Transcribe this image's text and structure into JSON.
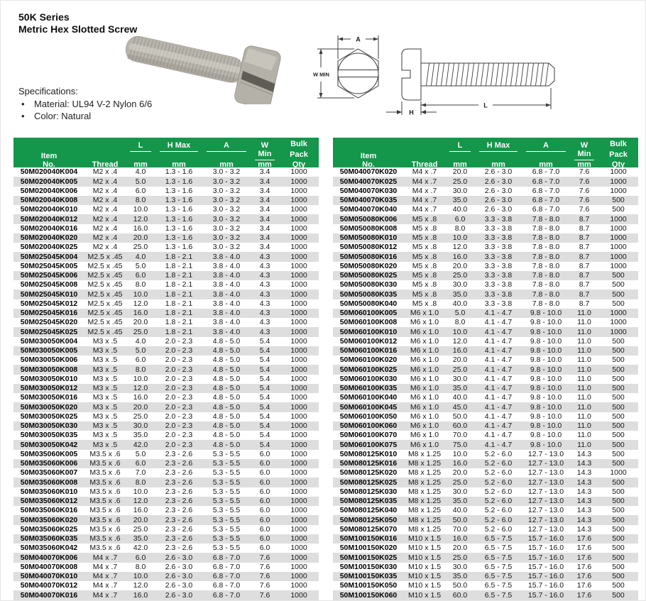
{
  "title": {
    "line1": "50K Series",
    "line2": "Metric Hex Slotted Screw"
  },
  "specifications": {
    "heading": "Specifications:",
    "bullet": "•",
    "items": [
      "Material: UL94 V-2 Nylon 6/6",
      "Color: Natural"
    ]
  },
  "drawing_labels": {
    "a": "A",
    "w_min": "W MIN",
    "l": "L",
    "h": "H"
  },
  "colors": {
    "header_green": "#14964B",
    "row_stripe": "#DEDEDE",
    "table_border": "#232323",
    "screw_body": "#B8B5AD"
  },
  "table_header": {
    "item_line1": "Item",
    "item_line2": "No.",
    "thread": "Thread",
    "l": "L",
    "h_max": "H Max",
    "a": "A",
    "w_min": "W Min",
    "unit": "mm",
    "bulk_line1": "Bulk",
    "bulk_line2": "Pack",
    "bulk_line3": "Qty"
  },
  "tables": {
    "left": {
      "rows": [
        [
          "50M020040K004",
          "M2 x .4",
          "4.0",
          "1.3 - 1.6",
          "3.0 - 3.2",
          "3.4",
          "1000"
        ],
        [
          "50M020040K005",
          "M2 x .4",
          "5.0",
          "1.3 - 1.6",
          "3.0 - 3.2",
          "3.4",
          "1000"
        ],
        [
          "50M020040K006",
          "M2 x .4",
          "6.0",
          "1.3 - 1.6",
          "3.0 - 3.2",
          "3.4",
          "1000"
        ],
        [
          "50M020040K008",
          "M2 x .4",
          "8.0",
          "1.3 - 1.6",
          "3.0 - 3.2",
          "3.4",
          "1000"
        ],
        [
          "50M020040K010",
          "M2 x .4",
          "10.0",
          "1.3 - 1.6",
          "3.0 - 3.2",
          "3.4",
          "1000"
        ],
        [
          "50M020040K012",
          "M2 x .4",
          "12.0",
          "1.3 - 1.6",
          "3.0 - 3.2",
          "3.4",
          "1000"
        ],
        [
          "50M020040K016",
          "M2 x .4",
          "16.0",
          "1.3 - 1.6",
          "3.0 - 3.2",
          "3.4",
          "1000"
        ],
        [
          "50M020040K020",
          "M2 x .4",
          "20.0",
          "1.3 - 1.6",
          "3.0 - 3.2",
          "3.4",
          "1000"
        ],
        [
          "50M020040K025",
          "M2 x .4",
          "25.0",
          "1.3 - 1.6",
          "3.0 - 3.2",
          "3.4",
          "1000"
        ],
        [
          "50M025045K004",
          "M2.5 x .45",
          "4.0",
          "1.8 - 2.1",
          "3.8 - 4.0",
          "4.3",
          "1000"
        ],
        [
          "50M025045K005",
          "M2.5 x .45",
          "5.0",
          "1.8 - 2.1",
          "3.8 - 4.0",
          "4.3",
          "1000"
        ],
        [
          "50M025045K006",
          "M2.5 x .45",
          "6.0",
          "1.8 - 2.1",
          "3.8 - 4.0",
          "4.3",
          "1000"
        ],
        [
          "50M025045K008",
          "M2.5 x .45",
          "8.0",
          "1.8 - 2.1",
          "3.8 - 4.0",
          "4.3",
          "1000"
        ],
        [
          "50M025045K010",
          "M2.5 x .45",
          "10.0",
          "1.8 - 2.1",
          "3.8 - 4.0",
          "4.3",
          "1000"
        ],
        [
          "50M025045K012",
          "M2.5 x .45",
          "12.0",
          "1.8 - 2.1",
          "3.8 - 4.0",
          "4.3",
          "1000"
        ],
        [
          "50M025045K016",
          "M2.5 x .45",
          "16.0",
          "1.8 - 2.1",
          "3.8 - 4.0",
          "4.3",
          "1000"
        ],
        [
          "50M025045K020",
          "M2.5 x .45",
          "20.0",
          "1.8 - 2.1",
          "3.8 - 4.0",
          "4.3",
          "1000"
        ],
        [
          "50M025045K025",
          "M2.5 x .45",
          "25.0",
          "1.8 - 2.1",
          "3.8 - 4.0",
          "4.3",
          "1000"
        ],
        [
          "50M030050K004",
          "M3 x .5",
          "4.0",
          "2.0 - 2.3",
          "4.8 - 5.0",
          "5.4",
          "1000"
        ],
        [
          "50M030050K005",
          "M3 x .5",
          "5.0",
          "2.0 - 2.3",
          "4.8 - 5.0",
          "5.4",
          "1000"
        ],
        [
          "50M030050K006",
          "M3 x .5",
          "6.0",
          "2.0 - 2.3",
          "4.8 - 5.0",
          "5.4",
          "1000"
        ],
        [
          "50M030050K008",
          "M3 x .5",
          "8.0",
          "2.0 - 2.3",
          "4.8 - 5.0",
          "5.4",
          "1000"
        ],
        [
          "50M030050K010",
          "M3 x .5",
          "10.0",
          "2.0 - 2.3",
          "4.8 - 5.0",
          "5.4",
          "1000"
        ],
        [
          "50M030050K012",
          "M3 x .5",
          "12.0",
          "2.0 - 2.3",
          "4.8 - 5.0",
          "5.4",
          "1000"
        ],
        [
          "50M030050K016",
          "M3 x .5",
          "16.0",
          "2.0 - 2.3",
          "4.8 - 5.0",
          "5.4",
          "1000"
        ],
        [
          "50M030050K020",
          "M3 x .5",
          "20.0",
          "2.0 - 2.3",
          "4.8 - 5.0",
          "5.4",
          "1000"
        ],
        [
          "50M030050K025",
          "M3 x .5",
          "25.0",
          "2.0 - 2.3",
          "4.8 - 5.0",
          "5.4",
          "1000"
        ],
        [
          "50M030050K030",
          "M3 x .5",
          "30.0",
          "2.0 - 2.3",
          "4.8 - 5.0",
          "5.4",
          "1000"
        ],
        [
          "50M030050K035",
          "M3 x .5",
          "35.0",
          "2.0 - 2.3",
          "4.8 - 5.0",
          "5.4",
          "1000"
        ],
        [
          "50M030050K042",
          "M3 x .5",
          "42.0",
          "2.0 - 2.3",
          "4.8 - 5.0",
          "5.4",
          "1000"
        ],
        [
          "50M035060K005",
          "M3.5 x .6",
          "5.0",
          "2.3 - 2.6",
          "5.3 - 5.5",
          "6.0",
          "1000"
        ],
        [
          "50M035060K006",
          "M3.5 x .6",
          "6.0",
          "2.3 - 2.6",
          "5.3 - 5.5",
          "6.0",
          "1000"
        ],
        [
          "50M035060K007",
          "M3.5 x .6",
          "7.0",
          "2.3 - 2.6",
          "5.3 - 5.5",
          "6.0",
          "1000"
        ],
        [
          "50M035060K008",
          "M3.5 x .6",
          "8.0",
          "2.3 - 2.6",
          "5.3 - 5.5",
          "6.0",
          "1000"
        ],
        [
          "50M035060K010",
          "M3.5 x .6",
          "10.0",
          "2.3 - 2.6",
          "5.3 - 5.5",
          "6.0",
          "1000"
        ],
        [
          "50M035060K012",
          "M3.5 x .6",
          "12.0",
          "2.3 - 2.6",
          "5.3 - 5.5",
          "6.0",
          "1000"
        ],
        [
          "50M035060K016",
          "M3.5 x .6",
          "16.0",
          "2.3 - 2.6",
          "5.3 - 5.5",
          "6.0",
          "1000"
        ],
        [
          "50M035060K020",
          "M3.5 x .6",
          "20.0",
          "2.3 - 2.6",
          "5.3 - 5.5",
          "6.0",
          "1000"
        ],
        [
          "50M035060K025",
          "M3.5 x .6",
          "25.0",
          "2.3 - 2.6",
          "5.3 - 5.5",
          "6.0",
          "1000"
        ],
        [
          "50M035060K035",
          "M3.5 x .6",
          "35.0",
          "2.3 - 2.6",
          "5.3 - 5.5",
          "6.0",
          "1000"
        ],
        [
          "50M035060K042",
          "M3.5 x .6",
          "42.0",
          "2.3 - 2.6",
          "5.3 - 5.5",
          "6.0",
          "1000"
        ],
        [
          "50M040070K006",
          "M4 x .7",
          "6.0",
          "2.6 - 3.0",
          "6.8 - 7.0",
          "7.6",
          "1000"
        ],
        [
          "50M040070K008",
          "M4 x .7",
          "8.0",
          "2.6 - 3.0",
          "6.8 - 7.0",
          "7.6",
          "1000"
        ],
        [
          "50M040070K010",
          "M4 x .7",
          "10.0",
          "2.6 - 3.0",
          "6.8 - 7.0",
          "7.6",
          "1000"
        ],
        [
          "50M040070K012",
          "M4 x .7",
          "12.0",
          "2.6 - 3.0",
          "6.8 - 7.0",
          "7.6",
          "1000"
        ],
        [
          "50M040070K016",
          "M4 x .7",
          "16.0",
          "2.6 - 3.0",
          "6.8 - 7.0",
          "7.6",
          "1000"
        ]
      ]
    },
    "right": {
      "rows": [
        [
          "50M040070K020",
          "M4 x .7",
          "20.0",
          "2.6 - 3.0",
          "6.8 - 7.0",
          "7.6",
          "1000"
        ],
        [
          "50M040070K025",
          "M4 x .7",
          "25.0",
          "2.6 - 3.0",
          "6.8 - 7.0",
          "7.6",
          "1000"
        ],
        [
          "50M040070K030",
          "M4 x .7",
          "30.0",
          "2.6 - 3.0",
          "6.8 - 7.0",
          "7.6",
          "1000"
        ],
        [
          "50M040070K035",
          "M4 x .7",
          "35.0",
          "2.6 - 3.0",
          "6.8 - 7.0",
          "7.6",
          "500"
        ],
        [
          "50M040070K040",
          "M4 x .7",
          "40.0",
          "2.6 - 3.0",
          "6.8 - 7.0",
          "7.6",
          "500"
        ],
        [
          "50M050080K006",
          "M5 x .8",
          "6.0",
          "3.3 - 3.8",
          "7.8 - 8.0",
          "8.7",
          "1000"
        ],
        [
          "50M050080K008",
          "M5 x .8",
          "8.0",
          "3.3 - 3.8",
          "7.8 - 8.0",
          "8.7",
          "1000"
        ],
        [
          "50M050080K010",
          "M5 x .8",
          "10.0",
          "3.3 - 3.8",
          "7.8 - 8.0",
          "8.7",
          "1000"
        ],
        [
          "50M050080K012",
          "M5 x .8",
          "12.0",
          "3.3 - 3.8",
          "7.8 - 8.0",
          "8.7",
          "1000"
        ],
        [
          "50M050080K016",
          "M5 x .8",
          "16.0",
          "3.3 - 3.8",
          "7.8 - 8.0",
          "8.7",
          "1000"
        ],
        [
          "50M050080K020",
          "M5 x .8",
          "20.0",
          "3.3 - 3.8",
          "7.8 - 8.0",
          "8.7",
          "1000"
        ],
        [
          "50M050080K025",
          "M5 x .8",
          "25.0",
          "3.3 - 3.8",
          "7.8 - 8.0",
          "8.7",
          "500"
        ],
        [
          "50M050080K030",
          "M5 x .8",
          "30.0",
          "3.3 - 3.8",
          "7.8 - 8.0",
          "8.7",
          "500"
        ],
        [
          "50M050080K035",
          "M5 x .8",
          "35.0",
          "3.3 - 3.8",
          "7.8 - 8.0",
          "8.7",
          "500"
        ],
        [
          "50M050080K040",
          "M5 x .8",
          "40.0",
          "3.3 - 3.8",
          "7.8 - 8.0",
          "8.7",
          "500"
        ],
        [
          "50M060100K005",
          "M6 x 1.0",
          "5.0",
          "4.1 - 4.7",
          "9.8 - 10.0",
          "11.0",
          "1000"
        ],
        [
          "50M060100K008",
          "M6 x 1.0",
          "8.0",
          "4.1 - 4.7",
          "9.8 - 10.0",
          "11.0",
          "1000"
        ],
        [
          "50M060100K010",
          "M6 x 1.0",
          "10.0",
          "4.1 - 4.7",
          "9.8 - 10.0",
          "11.0",
          "1000"
        ],
        [
          "50M060100K012",
          "M6 x 1.0",
          "12.0",
          "4.1 - 4.7",
          "9.8 - 10.0",
          "11.0",
          "500"
        ],
        [
          "50M060100K016",
          "M6 x 1.0",
          "16.0",
          "4.1 - 4.7",
          "9.8 - 10.0",
          "11.0",
          "500"
        ],
        [
          "50M060100K020",
          "M6 x 1.0",
          "20.0",
          "4.1 - 4.7",
          "9.8 - 10.0",
          "11.0",
          "500"
        ],
        [
          "50M060100K025",
          "M6 x 1.0",
          "25.0",
          "4.1 - 4.7",
          "9.8 - 10.0",
          "11.0",
          "500"
        ],
        [
          "50M060100K030",
          "M6 x 1.0",
          "30.0",
          "4.1 - 4.7",
          "9.8 - 10.0",
          "11.0",
          "500"
        ],
        [
          "50M060100K035",
          "M6 x 1.0",
          "35.0",
          "4.1 - 4.7",
          "9.8 - 10.0",
          "11.0",
          "500"
        ],
        [
          "50M060100K040",
          "M6 x 1.0",
          "40.0",
          "4.1 - 4.7",
          "9.8 - 10.0",
          "11.0",
          "500"
        ],
        [
          "50M060100K045",
          "M6 x 1.0",
          "45.0",
          "4.1 - 4.7",
          "9.8 - 10.0",
          "11.0",
          "500"
        ],
        [
          "50M060100K050",
          "M6 x 1.0",
          "50.0",
          "4.1 - 4.7",
          "9.8 - 10.0",
          "11.0",
          "500"
        ],
        [
          "50M060100K060",
          "M6 x 1.0",
          "60.0",
          "4.1 - 4.7",
          "9.8 - 10.0",
          "11.0",
          "500"
        ],
        [
          "50M060100K070",
          "M6 x 1.0",
          "70.0",
          "4.1 - 4.7",
          "9.8 - 10.0",
          "11.0",
          "500"
        ],
        [
          "50M060100K075",
          "M6 x 1.0",
          "75.0",
          "4.1 - 4.7",
          "9.8 - 10.0",
          "11.0",
          "500"
        ],
        [
          "50M080125K010",
          "M8 x 1.25",
          "10.0",
          "5.2 - 6.0",
          "12.7 - 13.0",
          "14.3",
          "500"
        ],
        [
          "50M080125K016",
          "M8 x 1.25",
          "16.0",
          "5.2 - 6.0",
          "12.7 - 13.0",
          "14.3",
          "500"
        ],
        [
          "50M080125K020",
          "M8 x 1.25",
          "20.0",
          "5.2 - 6.0",
          "12.7 - 13.0",
          "14.3",
          "1000"
        ],
        [
          "50M080125K025",
          "M8 x 1.25",
          "25.0",
          "5.2 - 6.0",
          "12.7 - 13.0",
          "14.3",
          "500"
        ],
        [
          "50M080125K030",
          "M8 x 1.25",
          "30.0",
          "5.2 - 6.0",
          "12.7 - 13.0",
          "14.3",
          "500"
        ],
        [
          "50M080125K035",
          "M8 x 1.25",
          "35.0",
          "5.2 - 6.0",
          "12.7 - 13.0",
          "14.3",
          "500"
        ],
        [
          "50M080125K040",
          "M8 x 1.25",
          "40.0",
          "5.2 - 6.0",
          "12.7 - 13.0",
          "14.3",
          "500"
        ],
        [
          "50M080125K050",
          "M8 x 1.25",
          "50.0",
          "5.2 - 6.0",
          "12.7 - 13.0",
          "14.3",
          "500"
        ],
        [
          "50M080125K070",
          "M8 x 1.25",
          "70.0",
          "5.2 - 6.0",
          "12.7 - 13.0",
          "14.3",
          "500"
        ],
        [
          "50M100150K016",
          "M10 x 1.5",
          "16.0",
          "6.5 - 7.5",
          "15.7 - 16.0",
          "17.6",
          "500"
        ],
        [
          "50M100150K020",
          "M10 x 1.5",
          "20.0",
          "6.5 - 7.5",
          "15.7 - 16.0",
          "17.6",
          "500"
        ],
        [
          "50M100150K025",
          "M10 x 1.5",
          "25.0",
          "6.5 - 7.5",
          "15.7 - 16.0",
          "17.6",
          "500"
        ],
        [
          "50M100150K030",
          "M10 x 1.5",
          "30.0",
          "6.5 - 7.5",
          "15.7 - 16.0",
          "17.6",
          "500"
        ],
        [
          "50M100150K035",
          "M10 x 1.5",
          "35.0",
          "6.5 - 7.5",
          "15.7 - 16.0",
          "17.6",
          "500"
        ],
        [
          "50M100150K050",
          "M10 x 1.5",
          "50.0",
          "6.5 - 7.5",
          "15.7 - 16.0",
          "17.6",
          "500"
        ],
        [
          "50M100150K060",
          "M10 x 1.5",
          "60.0",
          "6.5 - 7.5",
          "15.7 - 16.0",
          "17.6",
          "500"
        ]
      ]
    }
  }
}
